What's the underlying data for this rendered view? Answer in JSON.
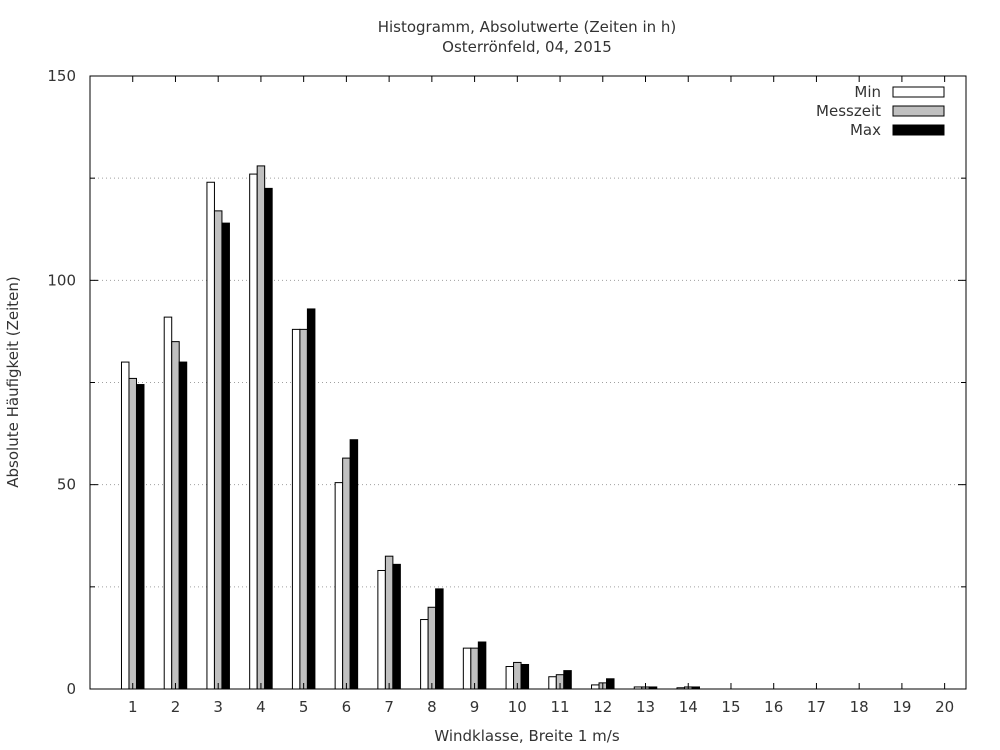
{
  "chart_data": {
    "type": "bar",
    "title": "Histogramm, Absolutwerte (Zeiten in h)",
    "subtitle": "Osterrönfeld, 04, 2015",
    "xlabel": "Windklasse, Breite 1 m/s",
    "ylabel": "Absolute Häufigkeit (Zeiten)",
    "ylim": [
      0,
      150
    ],
    "yticks": [
      0,
      50,
      100,
      150
    ],
    "grid": "horizontal dotted at 25-unit steps",
    "legend": "top-right",
    "categories": [
      "1",
      "2",
      "3",
      "4",
      "5",
      "6",
      "7",
      "8",
      "9",
      "10",
      "11",
      "12",
      "13",
      "14",
      "15",
      "16",
      "17",
      "18",
      "19",
      "20"
    ],
    "series": [
      {
        "name": "Min",
        "color": "#ffffff",
        "values": [
          80,
          91,
          124,
          126,
          88,
          50.5,
          29,
          17,
          10,
          5.5,
          3,
          1,
          0.5,
          0.3,
          0,
          0,
          0,
          0,
          0,
          0
        ]
      },
      {
        "name": "Messzeit",
        "color": "#c0c0c0",
        "values": [
          76,
          85,
          117,
          128,
          88,
          56.5,
          32.5,
          20,
          10,
          6.5,
          3.5,
          1.5,
          0.5,
          0.5,
          0,
          0,
          0,
          0,
          0,
          0
        ]
      },
      {
        "name": "Max",
        "color": "#000000",
        "values": [
          74.5,
          80,
          114,
          122.5,
          93,
          61,
          30.5,
          24.5,
          11.5,
          6,
          4.5,
          2.5,
          0.5,
          0.5,
          0,
          0,
          0,
          0,
          0,
          0
        ]
      }
    ]
  }
}
